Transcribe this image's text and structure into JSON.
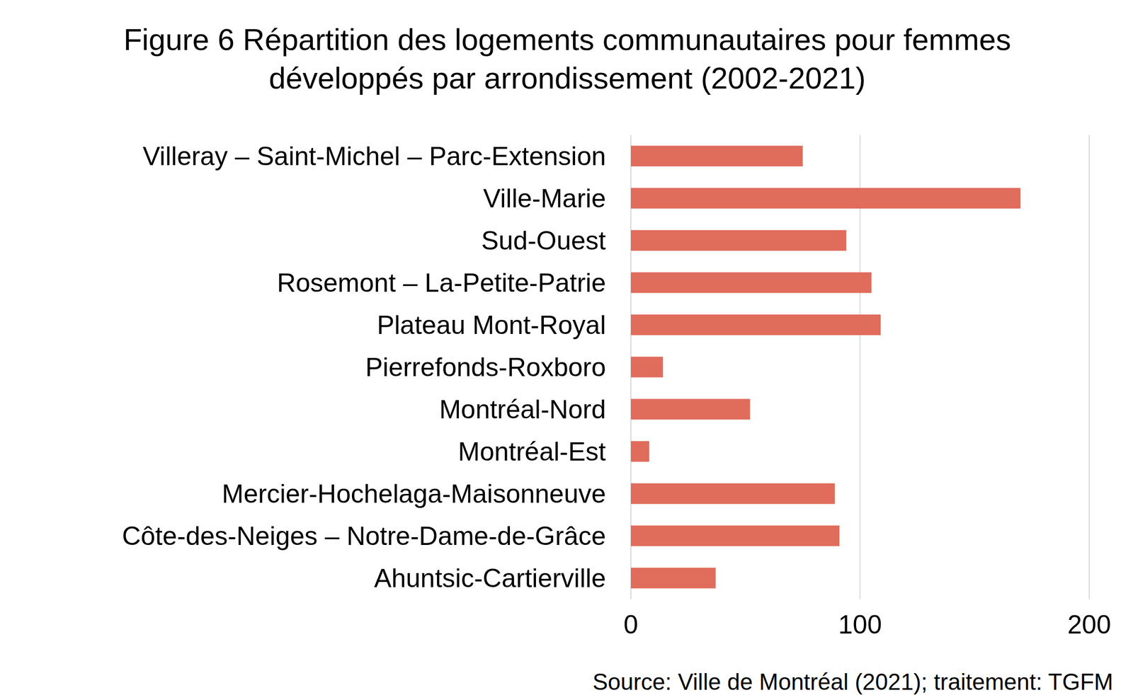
{
  "chart_data": {
    "type": "bar",
    "orientation": "horizontal",
    "title": "Figure 6 Répartition des logements communautaires pour femmes développés par arrondissement (2002-2021)",
    "categories": [
      "Villeray – Saint-Michel – Parc-Extension",
      "Ville-Marie",
      "Sud-Ouest",
      "Rosemont – La-Petite-Patrie",
      "Plateau Mont-Royal",
      "Pierrefonds-Roxboro",
      "Montréal-Nord",
      "Montréal-Est",
      "Mercier-Hochelaga-Maisonneuve",
      "Côte-des-Neiges – Notre-Dame-de-Grâce",
      "Ahuntsic-Cartierville"
    ],
    "values": [
      75,
      170,
      94,
      105,
      109,
      14,
      52,
      8,
      89,
      91,
      37
    ],
    "color": "#e06c5c",
    "xlim": [
      0,
      200
    ],
    "xticks": [
      0,
      100,
      200
    ],
    "grid": true,
    "source": "Source: Ville de Montréal (2021); traitement: TGFM"
  }
}
